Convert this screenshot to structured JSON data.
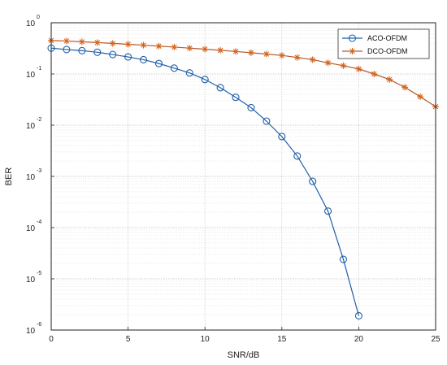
{
  "chart_data": {
    "type": "line",
    "title": "",
    "xlabel": "SNR/dB",
    "ylabel": "BER",
    "xlim": [
      0,
      25
    ],
    "ylim": [
      1e-06,
      1
    ],
    "yscale": "log",
    "grid": true,
    "legend": "top-right",
    "x_ticks": [
      0,
      5,
      10,
      15,
      20,
      25
    ],
    "y_ticks": [
      {
        "base": "10",
        "exp": "0"
      },
      {
        "base": "10",
        "exp": "-1"
      },
      {
        "base": "10",
        "exp": "-2"
      },
      {
        "base": "10",
        "exp": "-3"
      },
      {
        "base": "10",
        "exp": "-4"
      },
      {
        "base": "10",
        "exp": "-5"
      },
      {
        "base": "10",
        "exp": "-6"
      }
    ],
    "series": [
      {
        "name": "ACO-OFDM",
        "color": "#1f5fa8",
        "marker": "circle",
        "x": [
          0,
          1,
          2,
          3,
          4,
          5,
          6,
          7,
          8,
          9,
          10,
          11,
          12,
          13,
          14,
          15,
          16,
          17,
          18,
          19,
          20
        ],
        "y": [
          0.32,
          0.3,
          0.285,
          0.265,
          0.24,
          0.215,
          0.19,
          0.16,
          0.13,
          0.105,
          0.078,
          0.054,
          0.035,
          0.022,
          0.012,
          0.006,
          0.0025,
          0.0008,
          0.00021,
          2.4e-05,
          1.9e-06
        ]
      },
      {
        "name": "DCO-OFDM",
        "color": "#d4641e",
        "line_color": "#b45a28",
        "marker": "star",
        "x": [
          0,
          1,
          2,
          3,
          4,
          5,
          6,
          7,
          8,
          9,
          10,
          11,
          12,
          13,
          14,
          15,
          16,
          17,
          18,
          19,
          20,
          21,
          22,
          23,
          24,
          25
        ],
        "y": [
          0.45,
          0.44,
          0.425,
          0.41,
          0.395,
          0.38,
          0.365,
          0.35,
          0.335,
          0.32,
          0.305,
          0.29,
          0.275,
          0.26,
          0.245,
          0.23,
          0.21,
          0.19,
          0.165,
          0.145,
          0.125,
          0.1,
          0.078,
          0.055,
          0.036,
          0.023
        ]
      }
    ]
  }
}
